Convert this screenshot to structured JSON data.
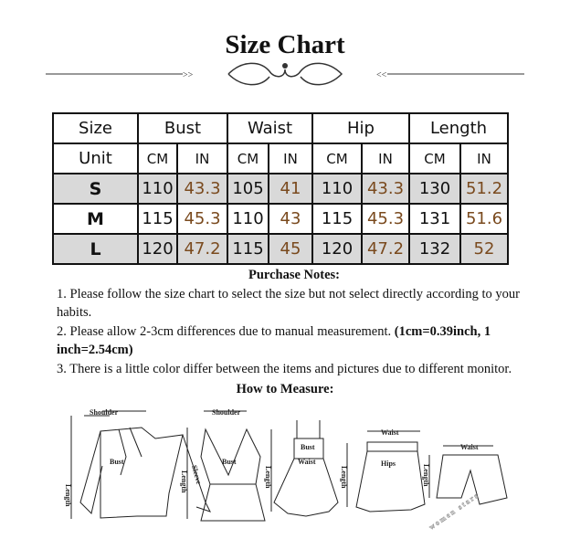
{
  "title": "Size Chart",
  "table": {
    "headers": [
      "Size",
      "Bust",
      "Waist",
      "Hip",
      "Length"
    ],
    "unit_label": "Unit",
    "units": [
      "CM",
      "IN",
      "CM",
      "IN",
      "CM",
      "IN",
      "CM",
      "IN"
    ],
    "rows": [
      {
        "size": "S",
        "values": [
          "110",
          "43.3",
          "105",
          "41",
          "110",
          "43.3",
          "130",
          "51.2"
        ]
      },
      {
        "size": "M",
        "values": [
          "115",
          "45.3",
          "110",
          "43",
          "115",
          "45.3",
          "131",
          "51.6"
        ]
      },
      {
        "size": "L",
        "values": [
          "120",
          "47.2",
          "115",
          "45",
          "120",
          "47.2",
          "132",
          "52"
        ]
      }
    ],
    "inch_color": "#7a4a1e",
    "shaded_row_color": "#d9d9d9"
  },
  "notes": {
    "heading": "Purchase Notes:",
    "note1": "1. Please follow the size chart to select the size but not select directly according to your habits.",
    "note2": "2. Please allow 2-3cm differences due to manual measurement.",
    "note2_bold": "(1cm=0.39inch, 1 inch=2.54cm)",
    "note3": "3. There is a little color differ between the items and pictures due to different monitor."
  },
  "how_to_measure": {
    "heading": "How to Measure:",
    "labels": {
      "shoulder": "Shoulder",
      "bust": "Bust",
      "sleeve": "Sleeve",
      "length": "Length",
      "waist": "Waist",
      "hips": "Hips"
    },
    "watermark": "women stars"
  }
}
